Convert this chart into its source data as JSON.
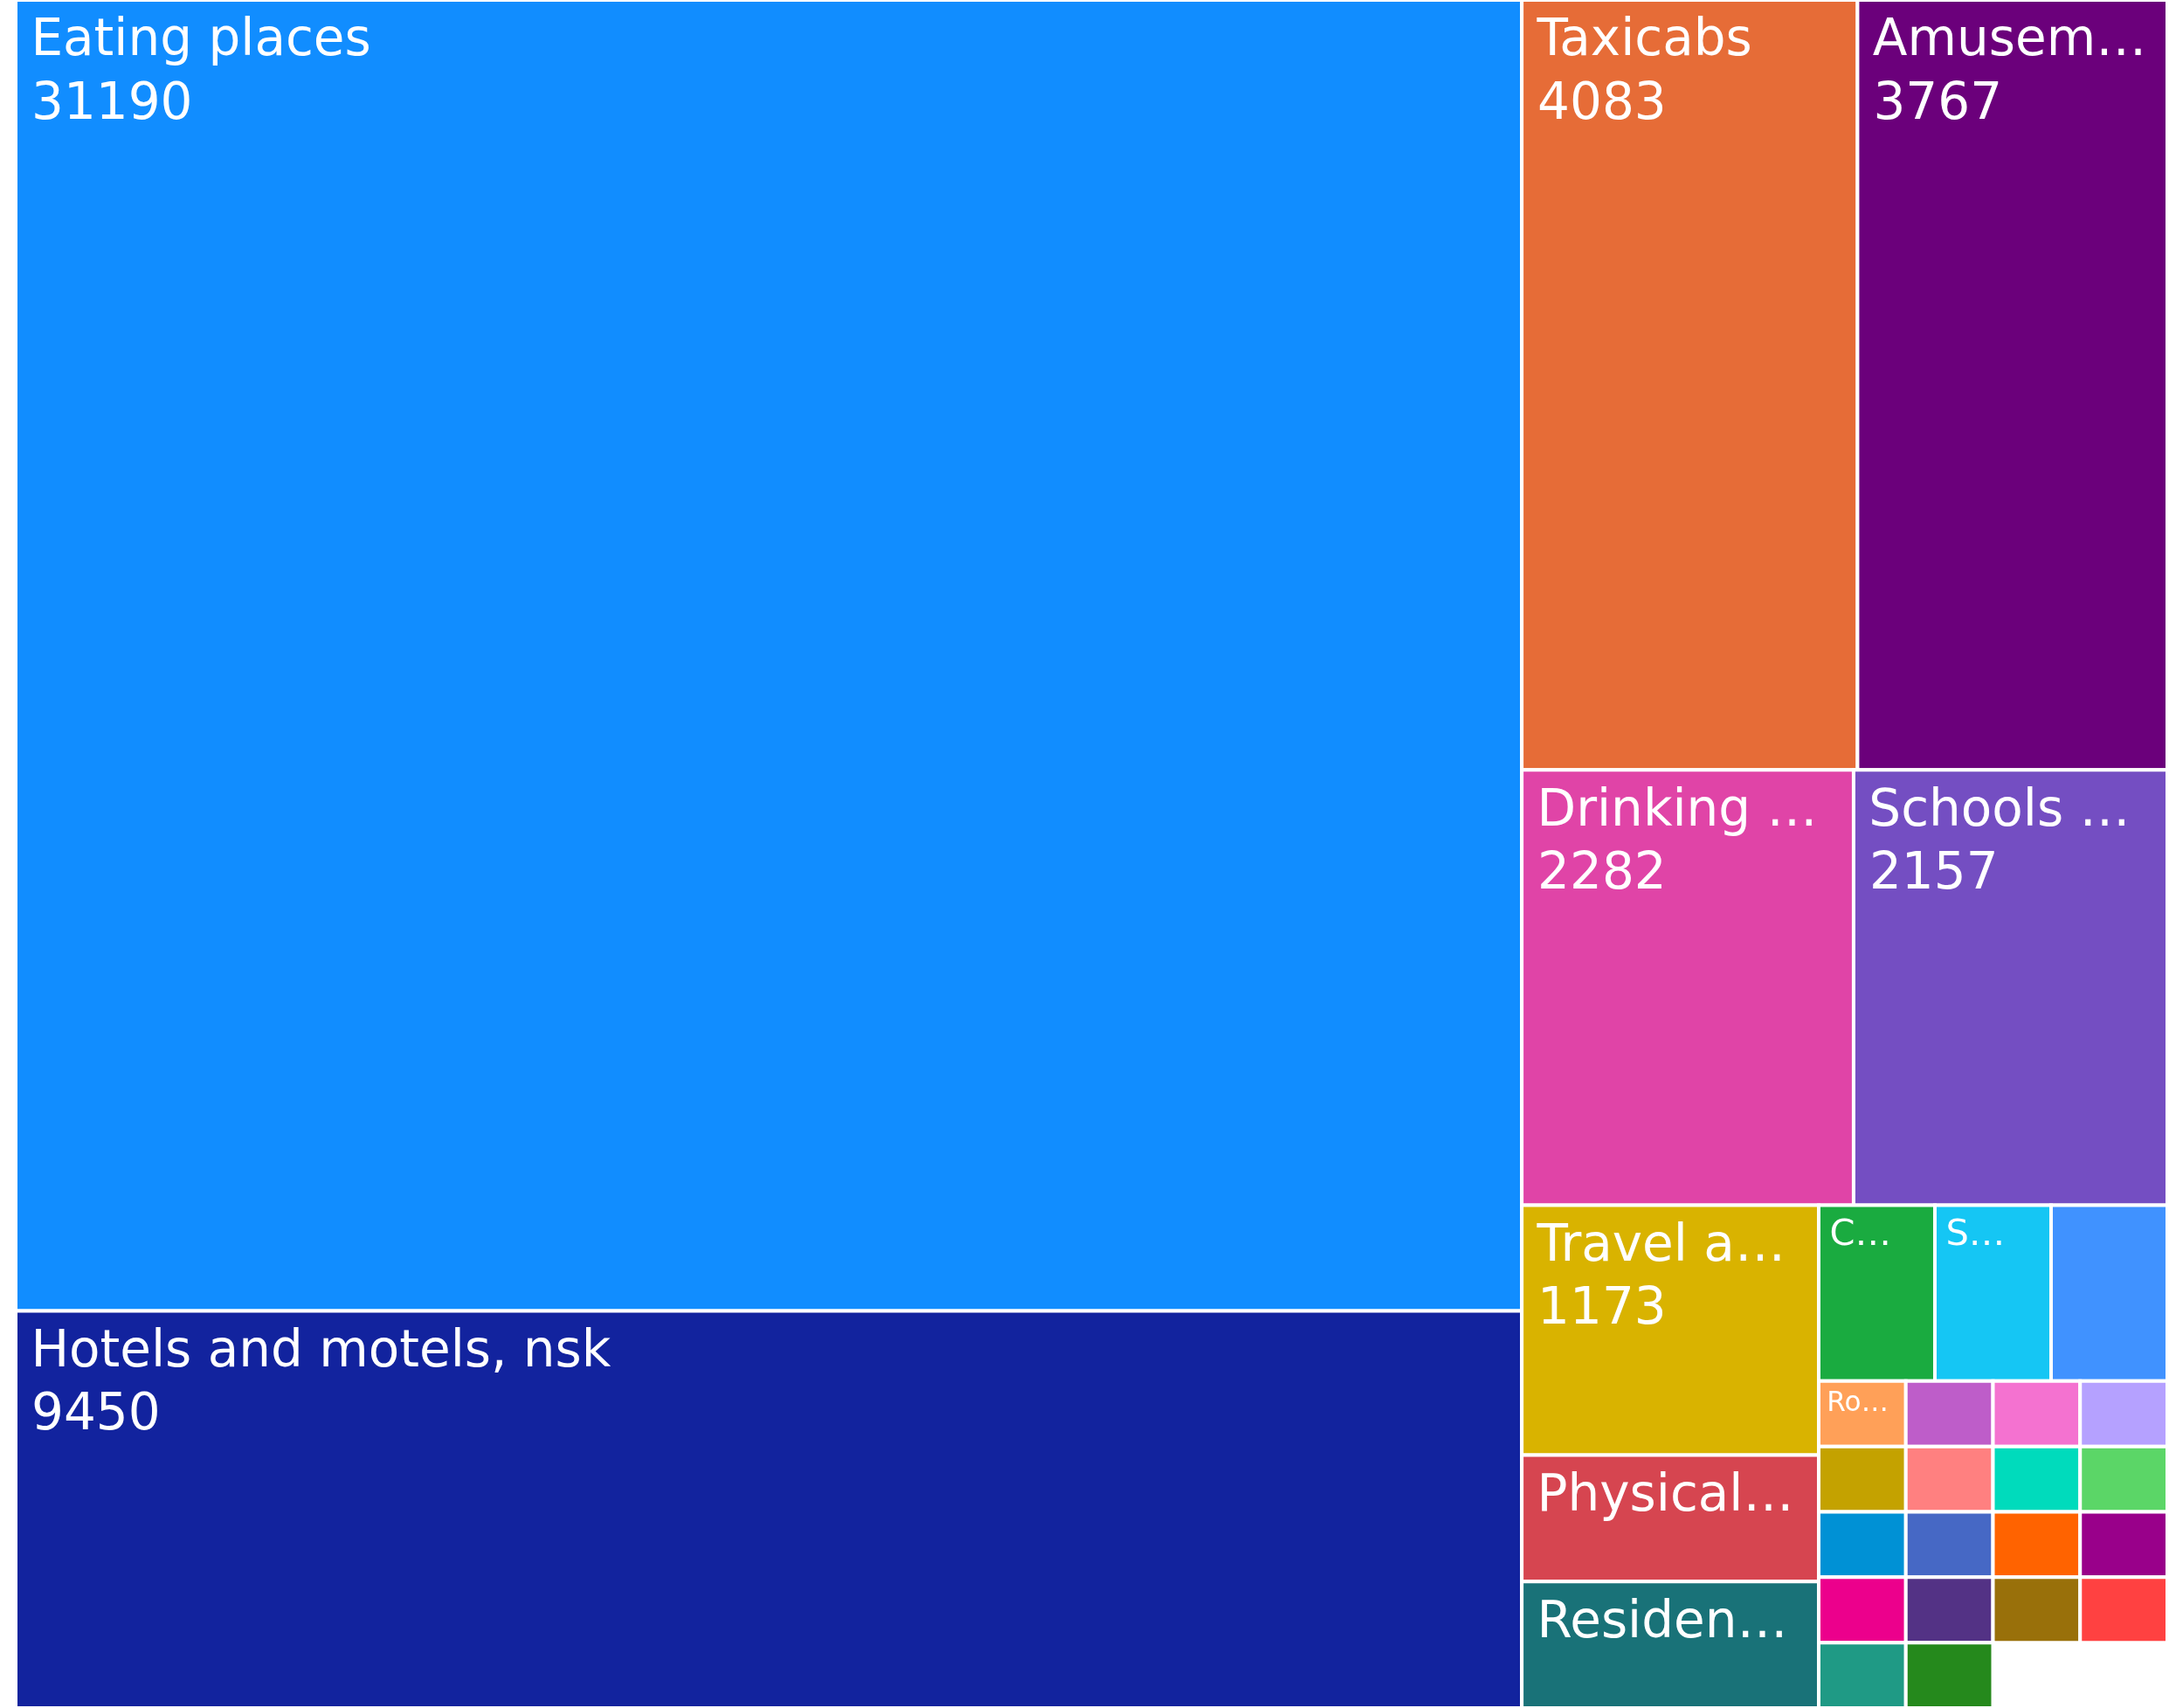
{
  "chart_data": {
    "type": "other",
    "data_labels": true,
    "categories": [
      "Eating places",
      "Hotels and motels, nsk",
      "Taxicabs",
      "Amusem…",
      "Drinking …",
      "Schools …",
      "Travel a…",
      "Physical…",
      "Residen…",
      "C…",
      "S…",
      null,
      "Ro…",
      null,
      null,
      null,
      null,
      null,
      null,
      null,
      null,
      null,
      null,
      null,
      null,
      null,
      null,
      null,
      null,
      null
    ],
    "values": [
      31190,
      9450,
      4083,
      3767,
      2282,
      2157,
      1173,
      null,
      null,
      null,
      null,
      null,
      null,
      null,
      null,
      null,
      null,
      null,
      null,
      null,
      null,
      null,
      null,
      null,
      null,
      null,
      null,
      null,
      null,
      null
    ],
    "colors": [
      "#118dff",
      "#12239e",
      "#e66c37",
      "#6b007b",
      "#e044a7",
      "#744ec2",
      "#d9b300",
      "#d64550",
      "#197278",
      "#1aab40",
      "#15c6f4",
      "#4092ff",
      "#ffa058",
      "#be5dc9",
      "#f472d0",
      "#b5a1ff",
      "#c4a200",
      "#ff8080",
      "#00dbbc",
      "#5bd667",
      "#0091d5",
      "#4668c5",
      "#ff6300",
      "#99008a",
      "#ec008c",
      "#533285",
      "#99700a",
      "#ff4141",
      "#1f9a85",
      "#25891c"
    ]
  }
}
